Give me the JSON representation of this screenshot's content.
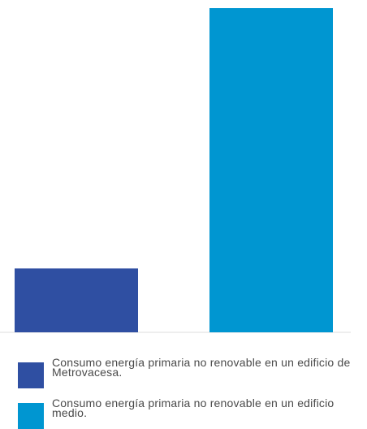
{
  "colors": {
    "series_1": "#2f4fa2",
    "series_2": "#0096d1",
    "axis": "#dddddd"
  },
  "chart_data": {
    "type": "bar",
    "categories": [
      "Consumo energía primaria no renovable en un edificio de Metrovacesa.",
      "Consumo energía primaria no renovable en un edificio medio."
    ],
    "values": [
      19.7,
      100
    ],
    "value_unit": "% of the taller bar",
    "ylim": [
      0,
      100
    ],
    "grid": false,
    "legend_position": "bottom-left",
    "legend": [
      "Consumo energía primaria no renovable en un edificio de Metrovacesa.",
      "Consumo energía primaria no renovable en un edificio medio."
    ]
  }
}
